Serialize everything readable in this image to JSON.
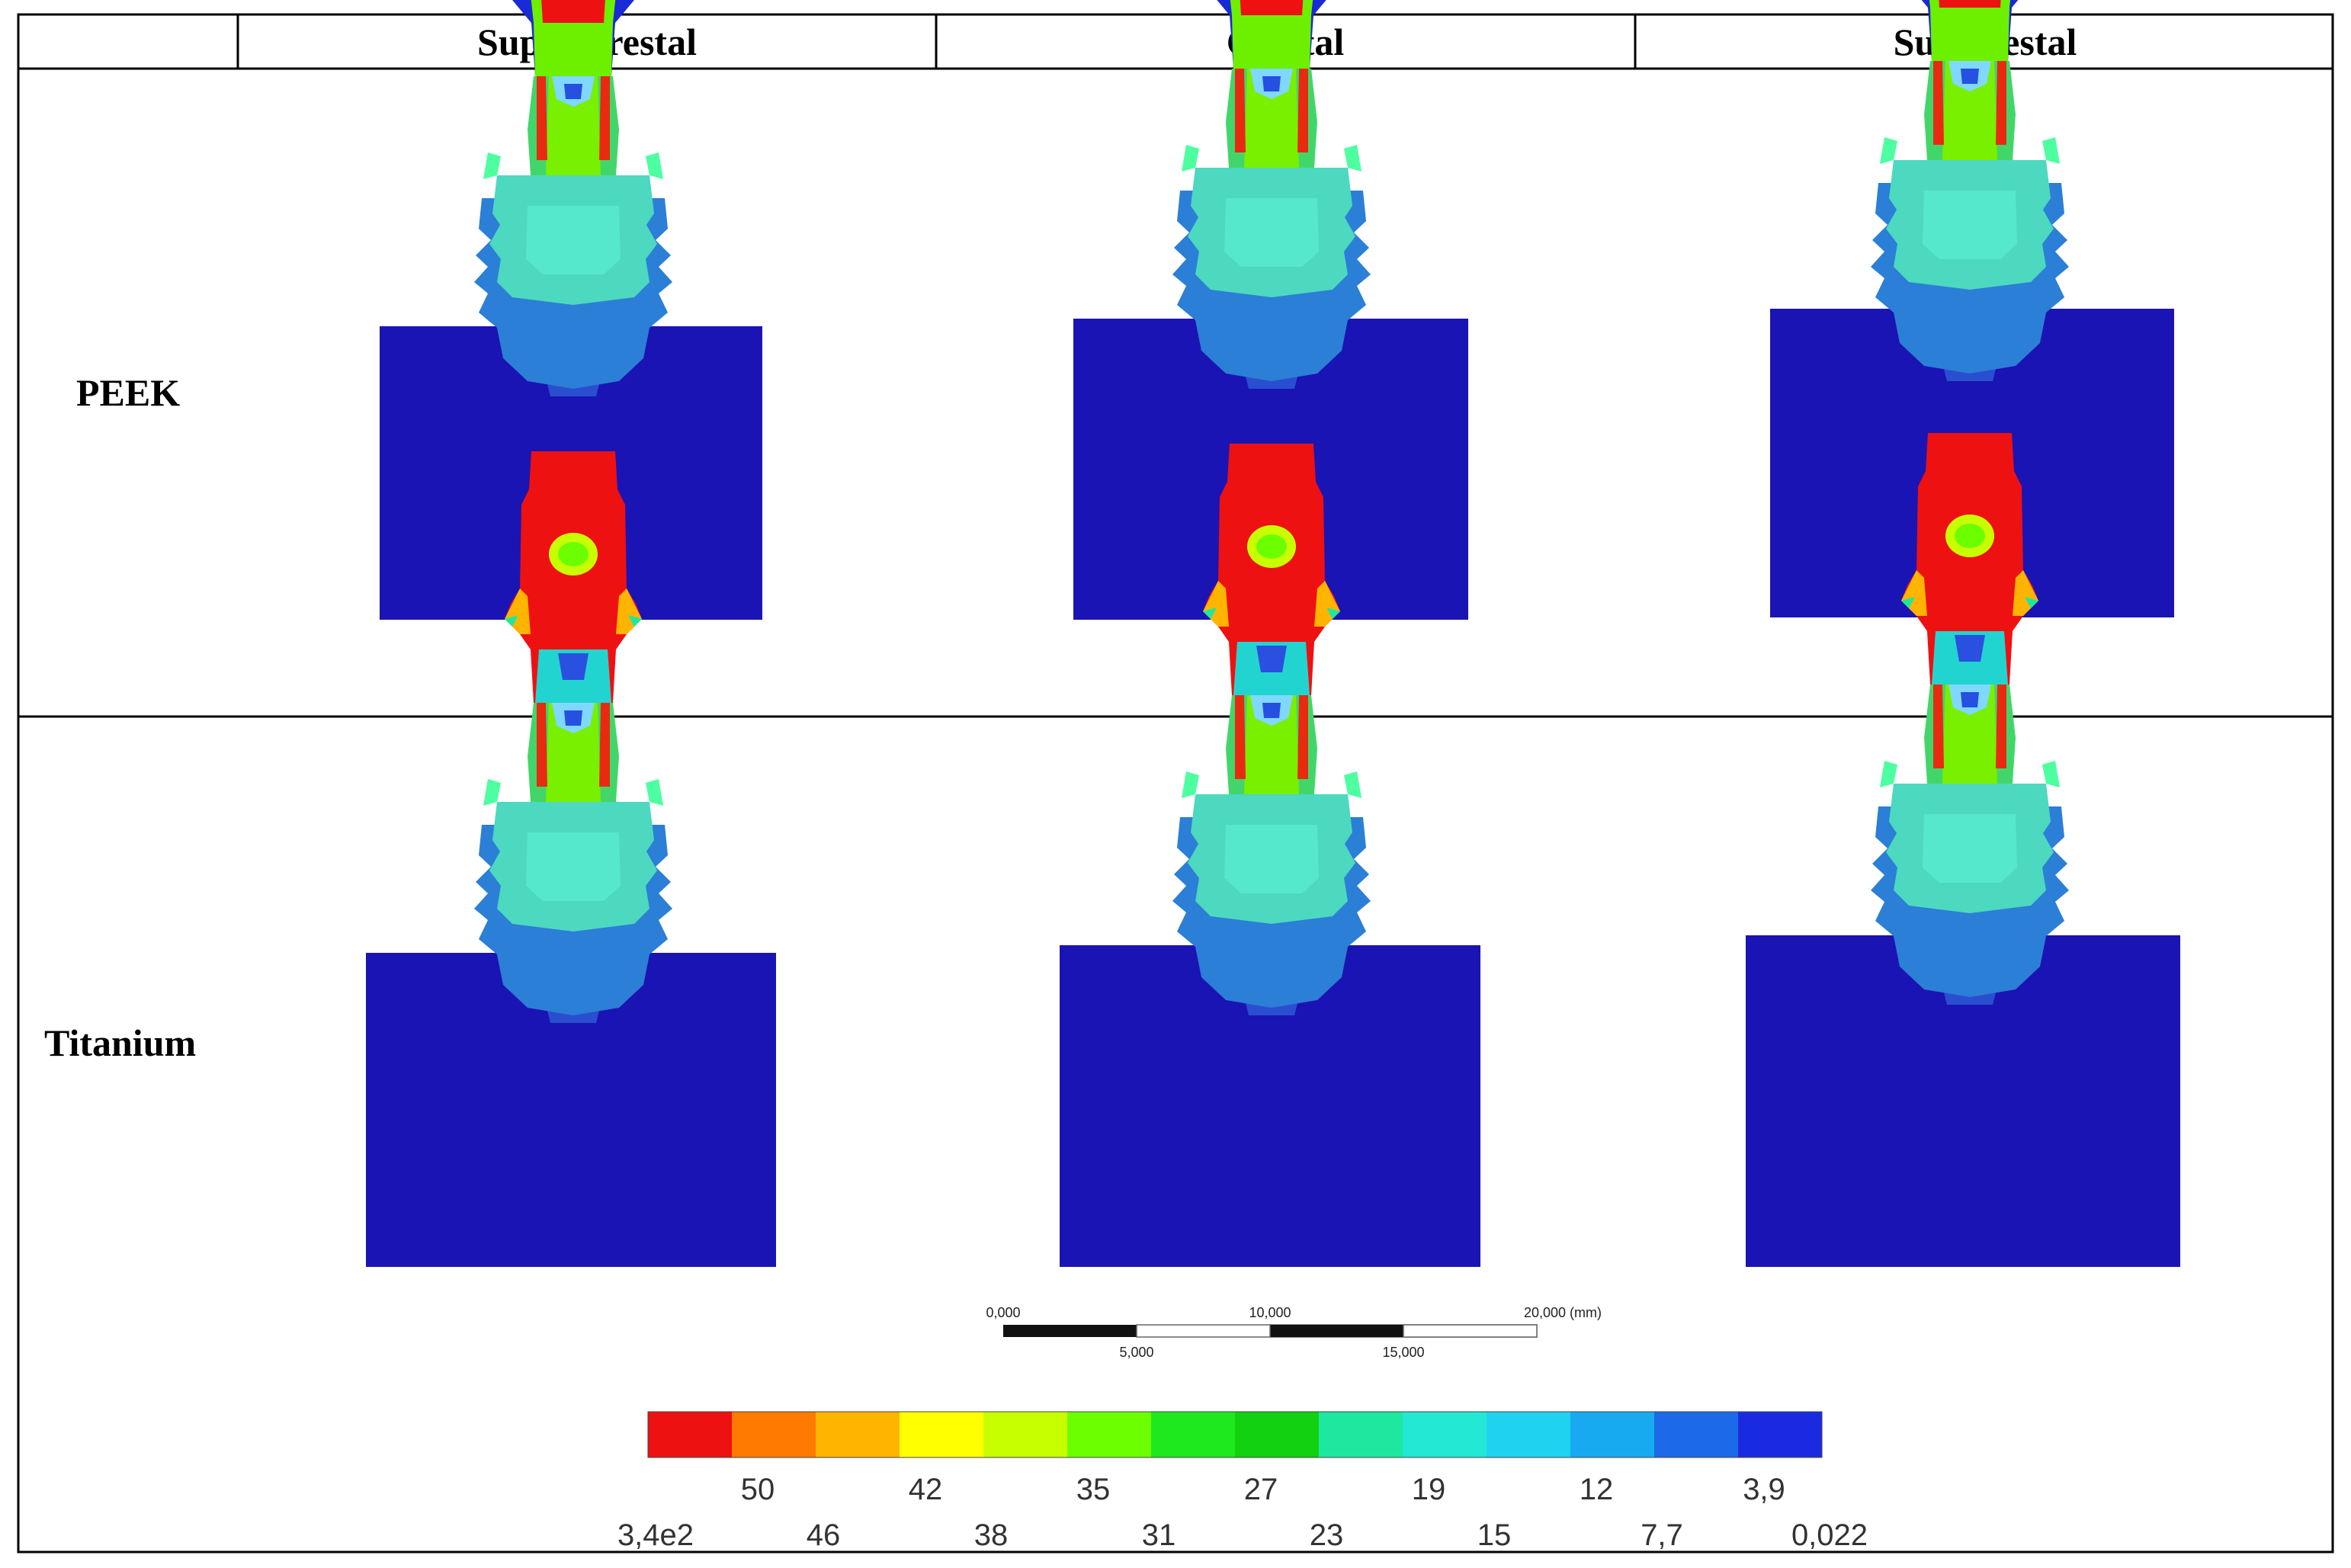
{
  "table": {
    "columns": [
      "",
      "Supra-crestal",
      "Crestal",
      "Sub-crestal"
    ],
    "rows": [
      {
        "label": "PEEK",
        "cells": [
          "supra-crestal",
          "crestal",
          "sub-crestal"
        ]
      },
      {
        "label": "Titanium",
        "cells": [
          "supra-crestal",
          "crestal",
          "sub-crestal"
        ]
      }
    ]
  },
  "scale_bar": {
    "top_labels": [
      "0,000",
      "10,000",
      "20,000 (mm)"
    ],
    "bottom_labels": [
      "5,000",
      "15,000"
    ]
  },
  "legend": {
    "colors": [
      "#ee1111",
      "#ff7a00",
      "#ffb400",
      "#ffff00",
      "#c8ff00",
      "#6cff00",
      "#1ee81e",
      "#11d111",
      "#1ee8a0",
      "#22e8d4",
      "#1fd2f0",
      "#18aaf0",
      "#1c6ae8",
      "#1a2ae0"
    ],
    "upper_ticks": [
      "50",
      "42",
      "35",
      "27",
      "19",
      "12",
      "3,9"
    ],
    "lower_ticks": [
      "3,4e2",
      "46",
      "38",
      "31",
      "23",
      "15",
      "7,7",
      "0,022"
    ]
  },
  "colors": {
    "bone": "#1a14b4",
    "max_stress": "#ee1111",
    "high": "#ff9a00",
    "mid": "#1ee81e",
    "mid_low": "#44dccc",
    "low": "#3c8cd8",
    "lowest": "#1f3ec8"
  }
}
